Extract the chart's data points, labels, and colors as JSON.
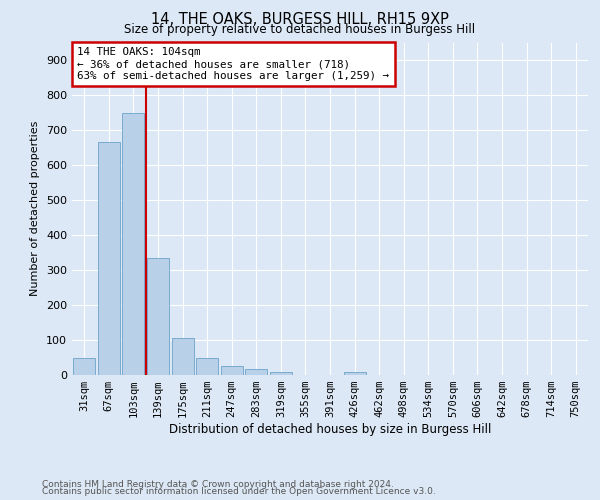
{
  "title1": "14, THE OAKS, BURGESS HILL, RH15 9XP",
  "title2": "Size of property relative to detached houses in Burgess Hill",
  "xlabel": "Distribution of detached houses by size in Burgess Hill",
  "ylabel": "Number of detached properties",
  "footnote1": "Contains HM Land Registry data © Crown copyright and database right 2024.",
  "footnote2": "Contains public sector information licensed under the Open Government Licence v3.0.",
  "annotation_line1": "14 THE OAKS: 104sqm",
  "annotation_line2": "← 36% of detached houses are smaller (718)",
  "annotation_line3": "63% of semi-detached houses are larger (1,259) →",
  "categories": [
    "31sqm",
    "67sqm",
    "103sqm",
    "139sqm",
    "175sqm",
    "211sqm",
    "247sqm",
    "283sqm",
    "319sqm",
    "355sqm",
    "391sqm",
    "426sqm",
    "462sqm",
    "498sqm",
    "534sqm",
    "570sqm",
    "606sqm",
    "642sqm",
    "678sqm",
    "714sqm",
    "750sqm"
  ],
  "values": [
    50,
    665,
    750,
    335,
    107,
    50,
    25,
    17,
    10,
    0,
    0,
    8,
    0,
    0,
    0,
    0,
    0,
    0,
    0,
    0,
    0
  ],
  "bar_color": "#b8d0e8",
  "bar_edge_color": "#7aaad0",
  "vline_color": "#cc0000",
  "ylim": [
    0,
    950
  ],
  "yticks": [
    0,
    100,
    200,
    300,
    400,
    500,
    600,
    700,
    800,
    900
  ],
  "background_color": "#dce8f5",
  "plot_bg_color": "#dce8f5",
  "grid_color": "#ffffff",
  "annotation_box_facecolor": "#ffffff",
  "annotation_box_edgecolor": "#cc0000",
  "title1_fontsize": 10.5,
  "title2_fontsize": 8.5,
  "ylabel_fontsize": 8,
  "xlabel_fontsize": 8.5,
  "tick_fontsize": 8,
  "xtick_fontsize": 7.5,
  "footnote_fontsize": 6.5,
  "footnote_color": "#555555"
}
